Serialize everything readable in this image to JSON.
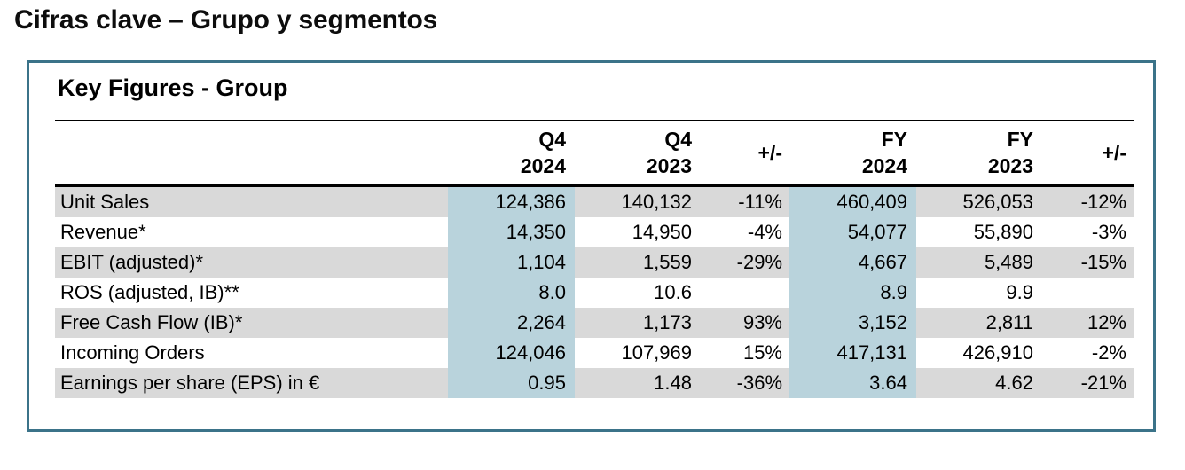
{
  "page_title": "Cifras clave – Grupo y segmentos",
  "panel": {
    "heading": "Key Figures - Group",
    "table": {
      "column_headers": {
        "label": "",
        "q4_2024": {
          "line1": "Q4",
          "line2": "2024"
        },
        "q4_2023": {
          "line1": "Q4",
          "line2": "2023"
        },
        "chg_q": "+/-",
        "fy_2024": {
          "line1": "FY",
          "line2": "2024"
        },
        "fy_2023": {
          "line1": "FY",
          "line2": "2023"
        },
        "chg_fy": "+/-"
      },
      "rows": [
        {
          "label": "Unit Sales",
          "q4_2024": "124,386",
          "q4_2023": "140,132",
          "chg_q": "-11%",
          "fy_2024": "460,409",
          "fy_2023": "526,053",
          "chg_fy": "-12%"
        },
        {
          "label": "Revenue*",
          "q4_2024": "14,350",
          "q4_2023": "14,950",
          "chg_q": "-4%",
          "fy_2024": "54,077",
          "fy_2023": "55,890",
          "chg_fy": "-3%"
        },
        {
          "label": "EBIT (adjusted)*",
          "q4_2024": "1,104",
          "q4_2023": "1,559",
          "chg_q": "-29%",
          "fy_2024": "4,667",
          "fy_2023": "5,489",
          "chg_fy": "-15%"
        },
        {
          "label": "ROS (adjusted, IB)**",
          "q4_2024": "8.0",
          "q4_2023": "10.6",
          "chg_q": "",
          "fy_2024": "8.9",
          "fy_2023": "9.9",
          "chg_fy": ""
        },
        {
          "label": "Free Cash Flow (IB)*",
          "q4_2024": "2,264",
          "q4_2023": "1,173",
          "chg_q": "93%",
          "fy_2024": "3,152",
          "fy_2023": "2,811",
          "chg_fy": "12%"
        },
        {
          "label": "Incoming Orders",
          "q4_2024": "124,046",
          "q4_2023": "107,969",
          "chg_q": "15%",
          "fy_2024": "417,131",
          "fy_2023": "426,910",
          "chg_fy": "-2%"
        },
        {
          "label": "Earnings per share (EPS) in €",
          "q4_2024": "0.95",
          "q4_2023": "1.48",
          "chg_q": "-36%",
          "fy_2024": "3.64",
          "fy_2023": "4.62",
          "chg_fy": "-21%"
        }
      ]
    }
  },
  "colors": {
    "highlight_column": "#b9d3dc",
    "row_stripe": "#d9d9d9",
    "panel_border": "#3b7389",
    "rule": "#000000",
    "text": "#000000"
  }
}
